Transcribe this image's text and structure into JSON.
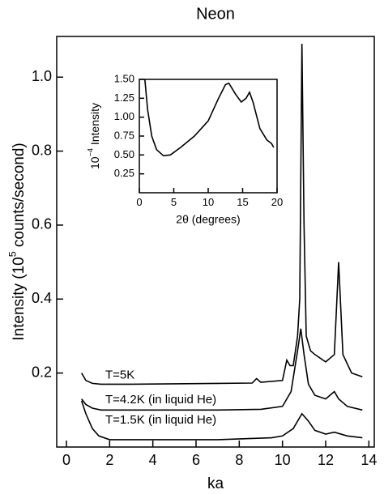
{
  "chart_data": [
    {
      "type": "line",
      "title": "Neon",
      "xlabel": "ka",
      "ylabel": [
        "Intensity (10",
        "5",
        " counts/second)"
      ],
      "xlim": [
        -0.45,
        14.25
      ],
      "xticks": [
        0,
        2,
        4,
        6,
        8,
        10,
        12,
        14
      ],
      "ylim": [
        0,
        1.11
      ],
      "yticks": [
        0.2,
        0.4,
        0.6,
        0.8,
        {
          "value": 1,
          "label": "1.0"
        }
      ],
      "series": [
        {
          "name": "T=5K",
          "color": "#000000",
          "x": [
            0.7,
            0.9,
            1.2,
            1.6,
            3,
            5,
            7,
            8.6,
            8.8,
            9,
            10,
            10.2,
            10.35,
            10.5,
            10.7,
            10.8,
            10.9,
            11.0,
            11.1,
            11.3,
            11.5,
            12,
            12.4,
            12.6,
            12.8,
            13.2,
            13.7
          ],
          "values": [
            0.2,
            0.18,
            0.172,
            0.17,
            0.17,
            0.171,
            0.172,
            0.173,
            0.185,
            0.175,
            0.18,
            0.235,
            0.22,
            0.22,
            0.3,
            0.4,
            1.09,
            0.6,
            0.3,
            0.26,
            0.25,
            0.23,
            0.25,
            0.5,
            0.25,
            0.2,
            0.19
          ]
        },
        {
          "name": "T=4.2K (in liquid He)",
          "color": "#000000",
          "x": [
            0.7,
            0.9,
            1.2,
            1.6,
            3,
            5,
            7,
            9,
            10,
            10.4,
            10.7,
            10.85,
            11.0,
            11.2,
            11.5,
            12,
            12.4,
            12.6,
            13,
            13.7
          ],
          "values": [
            0.13,
            0.115,
            0.105,
            0.1,
            0.1,
            0.1,
            0.1,
            0.102,
            0.11,
            0.15,
            0.26,
            0.32,
            0.25,
            0.17,
            0.14,
            0.13,
            0.15,
            0.13,
            0.11,
            0.1
          ]
        },
        {
          "name": "T=1.5K (in liquid He)",
          "color": "#000000",
          "x": [
            0.7,
            0.9,
            1.2,
            1.5,
            2,
            3,
            5,
            7,
            9.5,
            10,
            10.5,
            10.9,
            11.2,
            11.5,
            12,
            12.4,
            13,
            13.7
          ],
          "values": [
            0.125,
            0.09,
            0.05,
            0.03,
            0.02,
            0.02,
            0.02,
            0.02,
            0.025,
            0.03,
            0.05,
            0.09,
            0.07,
            0.045,
            0.035,
            0.04,
            0.03,
            0.025
          ]
        }
      ]
    },
    {
      "type": "line",
      "xlabel": "2θ (degrees)",
      "ylabel": [
        "10",
        "−4",
        " Intensity"
      ],
      "xlim": [
        0,
        20
      ],
      "xticks": [
        0,
        5,
        10,
        15,
        20
      ],
      "ylim": [
        0,
        1.5
      ],
      "yticks": [
        0.25,
        {
          "value": 0.5,
          "label": "0.50"
        },
        0.75,
        {
          "value": 1,
          "label": "1.00"
        },
        1.25,
        {
          "value": 1.5,
          "label": "1.50"
        }
      ],
      "series": [
        {
          "color": "#000000",
          "x": [
            0.8,
            1.2,
            1.8,
            2.5,
            3.5,
            4.5,
            6,
            8,
            10,
            11.5,
            12.5,
            13,
            14,
            14.8,
            15.5,
            16,
            16.5,
            17.5,
            18.5,
            19.2,
            19.5
          ],
          "values": [
            1.5,
            1.1,
            0.75,
            0.57,
            0.49,
            0.5,
            0.6,
            0.75,
            0.95,
            1.25,
            1.43,
            1.45,
            1.3,
            1.2,
            1.25,
            1.33,
            1.2,
            0.85,
            0.7,
            0.65,
            0.6
          ]
        }
      ]
    }
  ]
}
